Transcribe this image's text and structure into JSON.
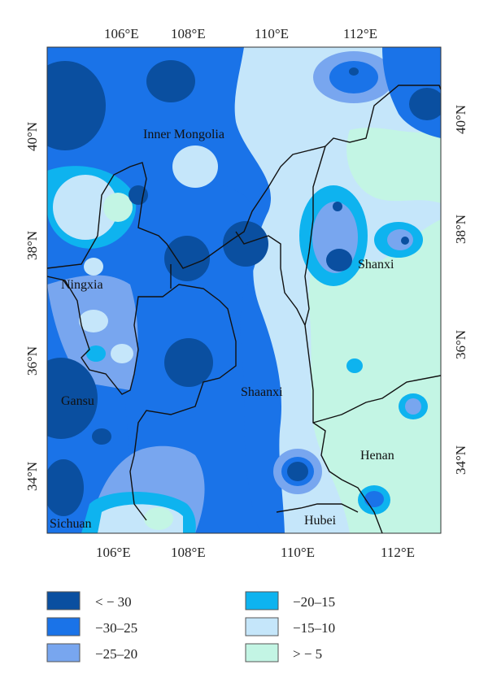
{
  "map": {
    "top_lon_labels": [
      "106°E",
      "108°E",
      "110°E",
      "112°E"
    ],
    "bottom_lon_labels": [
      "106°E",
      "108°E",
      "110°E",
      "112°E"
    ],
    "left_lat_labels": [
      "40°N",
      "38°N",
      "36°N",
      "34°N"
    ],
    "right_lat_labels": [
      "40°N",
      "38°N",
      "36°N",
      "34°N"
    ],
    "regions": [
      {
        "id": "inner-mongolia",
        "label": "Inner Mongolia"
      },
      {
        "id": "ningxia",
        "label": "Ningxia"
      },
      {
        "id": "shanxi",
        "label": "Shanxi"
      },
      {
        "id": "gansu",
        "label": "Gansu"
      },
      {
        "id": "shaanxi",
        "label": "Shaanxi"
      },
      {
        "id": "henan",
        "label": "Henan"
      },
      {
        "id": "sichuan",
        "label": "Sichuan"
      },
      {
        "id": "hubei",
        "label": "Hubei"
      }
    ]
  },
  "legend": {
    "items": [
      {
        "label": "< − 30",
        "color": "#0a4fa0"
      },
      {
        "label": "−20–15",
        "color": "#0eb3ef"
      },
      {
        "label": "−30–25",
        "color": "#1a73e8"
      },
      {
        "label": "−15–10",
        "color": "#c5e6fa"
      },
      {
        "label": "−25–20",
        "color": "#78a6ef"
      },
      {
        "label": "> − 5",
        "color": "#c3f5e4"
      }
    ]
  },
  "palette": {
    "lt_m30": "#0a4fa0",
    "m30_25": "#1a73e8",
    "m25_20": "#78a6ef",
    "m20_15": "#0eb3ef",
    "m15_10": "#c5e6fa",
    "gt_m5": "#c3f5e4"
  }
}
